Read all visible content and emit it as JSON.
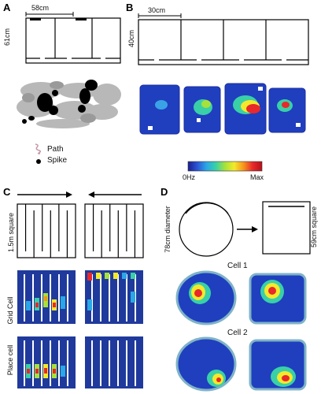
{
  "panels": {
    "a": {
      "label": "A",
      "width_label": "58cm",
      "height_label": "61cm",
      "legend": [
        {
          "text": "Path",
          "icon": "path-squiggle"
        },
        {
          "text": "Spike",
          "icon": "black-dot"
        }
      ]
    },
    "b": {
      "label": "B",
      "width_label": "30cm",
      "height_label": "40cm",
      "colorbar": {
        "min_label": "0Hz",
        "max_label": "Max",
        "colors": [
          "#1b1f8f",
          "#2d55d6",
          "#2aa7e6",
          "#39d0a8",
          "#a6e23a",
          "#f3e92b",
          "#f7941d",
          "#e8282a",
          "#b3121a"
        ]
      }
    },
    "c": {
      "label": "C",
      "square_label": "1.5m square",
      "row_labels": [
        "Grid Cell",
        "Place cell"
      ]
    },
    "d": {
      "label": "D",
      "circle_label": "78cm diameter",
      "square_label": "59cm square",
      "cells": [
        "Cell 1",
        "Cell 2"
      ]
    }
  }
}
